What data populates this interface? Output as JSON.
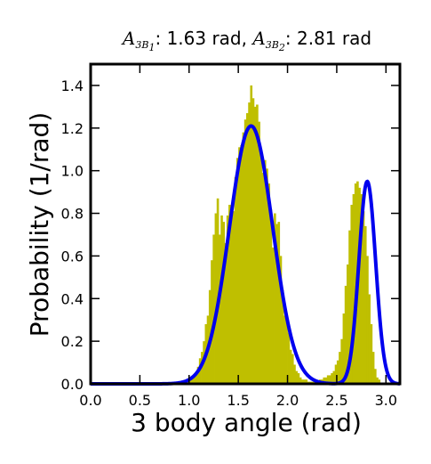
{
  "chart_data": {
    "type": "bar",
    "title": {
      "prefix_1": "A",
      "sub_1": "3B",
      "subsub_1": "1",
      "value_1": ": 1.63 rad, ",
      "prefix_2": "A",
      "sub_2": "3B",
      "subsub_2": "2",
      "value_2": ": 2.81 rad"
    },
    "xlabel": "3 body angle (rad)",
    "ylabel": "Probability (1/rad)",
    "xlim": [
      0.0,
      3.14159
    ],
    "ylim": [
      0.0,
      1.5
    ],
    "xticks": [
      "0.0",
      "0.5",
      "1.0",
      "1.5",
      "2.0",
      "2.5",
      "3.0"
    ],
    "yticks": [
      "0.0",
      "0.2",
      "0.4",
      "0.6",
      "0.8",
      "1.0",
      "1.2",
      "1.4"
    ],
    "grid": false,
    "series": [
      {
        "kind": "histogram",
        "color": "#bfbf00",
        "bin_start": 0.94,
        "bin_width": 0.02,
        "values": [
          0.0,
          0.01,
          0.01,
          0.02,
          0.03,
          0.04,
          0.05,
          0.08,
          0.12,
          0.15,
          0.2,
          0.28,
          0.32,
          0.44,
          0.58,
          0.7,
          0.8,
          0.87,
          0.7,
          0.79,
          0.76,
          0.66,
          0.79,
          0.84,
          0.79,
          0.81,
          0.97,
          1.06,
          1.11,
          1.12,
          1.18,
          1.24,
          1.27,
          1.32,
          1.4,
          1.34,
          1.3,
          1.31,
          1.23,
          1.06,
          0.99,
          1.05,
          1.01,
          0.94,
          0.82,
          0.64,
          0.8,
          0.75,
          0.76,
          0.6,
          0.44,
          0.32,
          0.29,
          0.24,
          0.16,
          0.14,
          0.09,
          0.06,
          0.05,
          0.03,
          0.02,
          0.02,
          0.02,
          0.01,
          0.01,
          0.01,
          0.01,
          0.01,
          0.01,
          0.02,
          0.02,
          0.03,
          0.03,
          0.04,
          0.04,
          0.05,
          0.06,
          0.09,
          0.11,
          0.15,
          0.21,
          0.33,
          0.46,
          0.56,
          0.72,
          0.84,
          0.89,
          0.94,
          0.95,
          0.92,
          0.89,
          0.81,
          0.74,
          0.6,
          0.42,
          0.28,
          0.15,
          0.07,
          0.03,
          0.02
        ]
      },
      {
        "kind": "fit_curve",
        "color": "#0000ee",
        "components": [
          {
            "mean": 1.63,
            "sd": 0.22,
            "amplitude": 1.21
          },
          {
            "mean": 2.81,
            "sd": 0.085,
            "amplitude": 0.95
          }
        ]
      }
    ]
  }
}
